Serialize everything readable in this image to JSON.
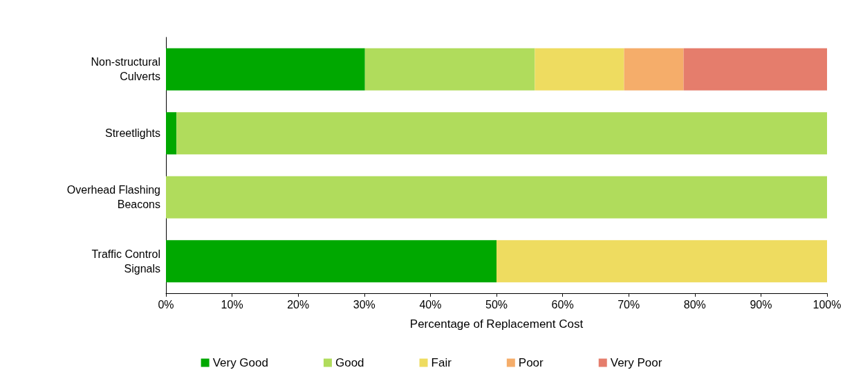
{
  "chart_data": {
    "type": "bar",
    "orientation": "horizontal",
    "stacked": true,
    "xlabel": "Percentage of Replacement Cost",
    "categories": [
      "Non-structural Culverts",
      "Streetlights",
      "Overhead Flashing Beacons",
      "Traffic Control Signals"
    ],
    "series": [
      {
        "name": "Very Good",
        "color": "#00a800",
        "values": [
          30.1,
          1.6,
          null,
          50
        ]
      },
      {
        "name": "Good",
        "color": "#b0dc5c",
        "values": [
          25.7,
          98.4,
          100,
          null
        ]
      },
      {
        "name": "Fair",
        "color": "#eedc60",
        "values": [
          13.5,
          null,
          null,
          50
        ]
      },
      {
        "name": "Poor",
        "color": "#f5ad6a",
        "values": [
          9,
          null,
          null,
          null
        ]
      },
      {
        "name": "Very Poor",
        "color": "#e57d6c",
        "values": [
          21.7,
          null,
          null,
          null
        ]
      }
    ],
    "xlim": [
      0,
      100
    ],
    "xticks": [
      {
        "value": 0,
        "label": "0%"
      },
      {
        "value": 10,
        "label": "10%"
      },
      {
        "value": 20,
        "label": "20%"
      },
      {
        "value": 30,
        "label": "30%"
      },
      {
        "value": 40,
        "label": "40%"
      },
      {
        "value": 50,
        "label": "50%"
      },
      {
        "value": 60,
        "label": "60%"
      },
      {
        "value": 70,
        "label": "70%"
      },
      {
        "value": 80,
        "label": "80%"
      },
      {
        "value": 90,
        "label": "90%"
      },
      {
        "value": 100,
        "label": "100%"
      }
    ],
    "grid": false,
    "legend": "bottom"
  }
}
